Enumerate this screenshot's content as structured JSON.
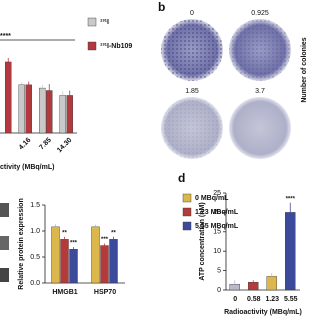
{
  "chart_data": [
    {
      "type": "bar",
      "x_label": "ctivity (MBq/mL)",
      "categories": [
        null,
        "4.16",
        "7.85",
        "14.30"
      ],
      "series": [
        {
          "name": "¹³¹I",
          "color": "#c9c9c9",
          "values": [
            null,
            0.59,
            0.55,
            0.46
          ],
          "errors": [
            null,
            0.03,
            0.04,
            0.05
          ]
        },
        {
          "name": "¹³¹I-Nb109",
          "color": "#b23a3f",
          "values": [
            0.87,
            0.59,
            0.52,
            0.46
          ],
          "errors": [
            0.05,
            0.04,
            0.08,
            0.06
          ]
        }
      ],
      "ylim": [
        0,
        1.2
      ],
      "bracket_label": "****"
    },
    {
      "type": "bar",
      "y_label": "Relative protein expression",
      "categories": [
        "HMGB1",
        "HSP70"
      ],
      "series": [
        {
          "name": "0 MBq/mL",
          "color": "#dcb84c",
          "values": [
            1.08,
            1.08
          ],
          "errors": [
            0.05,
            0.04
          ]
        },
        {
          "name": "1.23 MBq/mL",
          "color": "#b53b3b",
          "values": [
            0.84,
            0.72
          ],
          "errors": [
            0.05,
            0.04
          ],
          "notes": [
            "**",
            "***"
          ]
        },
        {
          "name": "5.55 MBq/mL",
          "color": "#3c4a9c",
          "values": [
            0.65,
            0.84
          ],
          "errors": [
            0.04,
            0.05
          ],
          "notes": [
            "***",
            "**"
          ]
        }
      ],
      "ylim": [
        0,
        1.5
      ],
      "yticks": [
        {
          "value": 0,
          "label": "0.0"
        },
        {
          "value": 0.5,
          "label": "0.5"
        },
        {
          "value": 1,
          "label": "1.0"
        },
        {
          "value": 1.5,
          "label": "1.5"
        }
      ]
    },
    {
      "type": "bar",
      "panel_label": "d",
      "y_label": "ATP concentration (nM)",
      "x_label": "Radioactivity (MBq/mL)",
      "categories": [
        "0",
        "0.58",
        "1.23",
        "5.55"
      ],
      "values": [
        1.5,
        2,
        3.5,
        20
      ],
      "errors": [
        1,
        0.5,
        0.8,
        2.5
      ],
      "colors": [
        "#b9b9c9",
        "#b53b3b",
        "#dcb84c",
        "#3c4a9c"
      ],
      "notes": [
        null,
        null,
        null,
        "****"
      ],
      "ylim": [
        0,
        25
      ],
      "yticks": [
        0,
        5,
        10,
        15,
        20,
        25
      ]
    }
  ],
  "images_panel": {
    "label": "b",
    "plate_labels": [
      "0",
      "0.925",
      "1.85",
      "3.7"
    ],
    "y_label": "Number of colonies"
  }
}
